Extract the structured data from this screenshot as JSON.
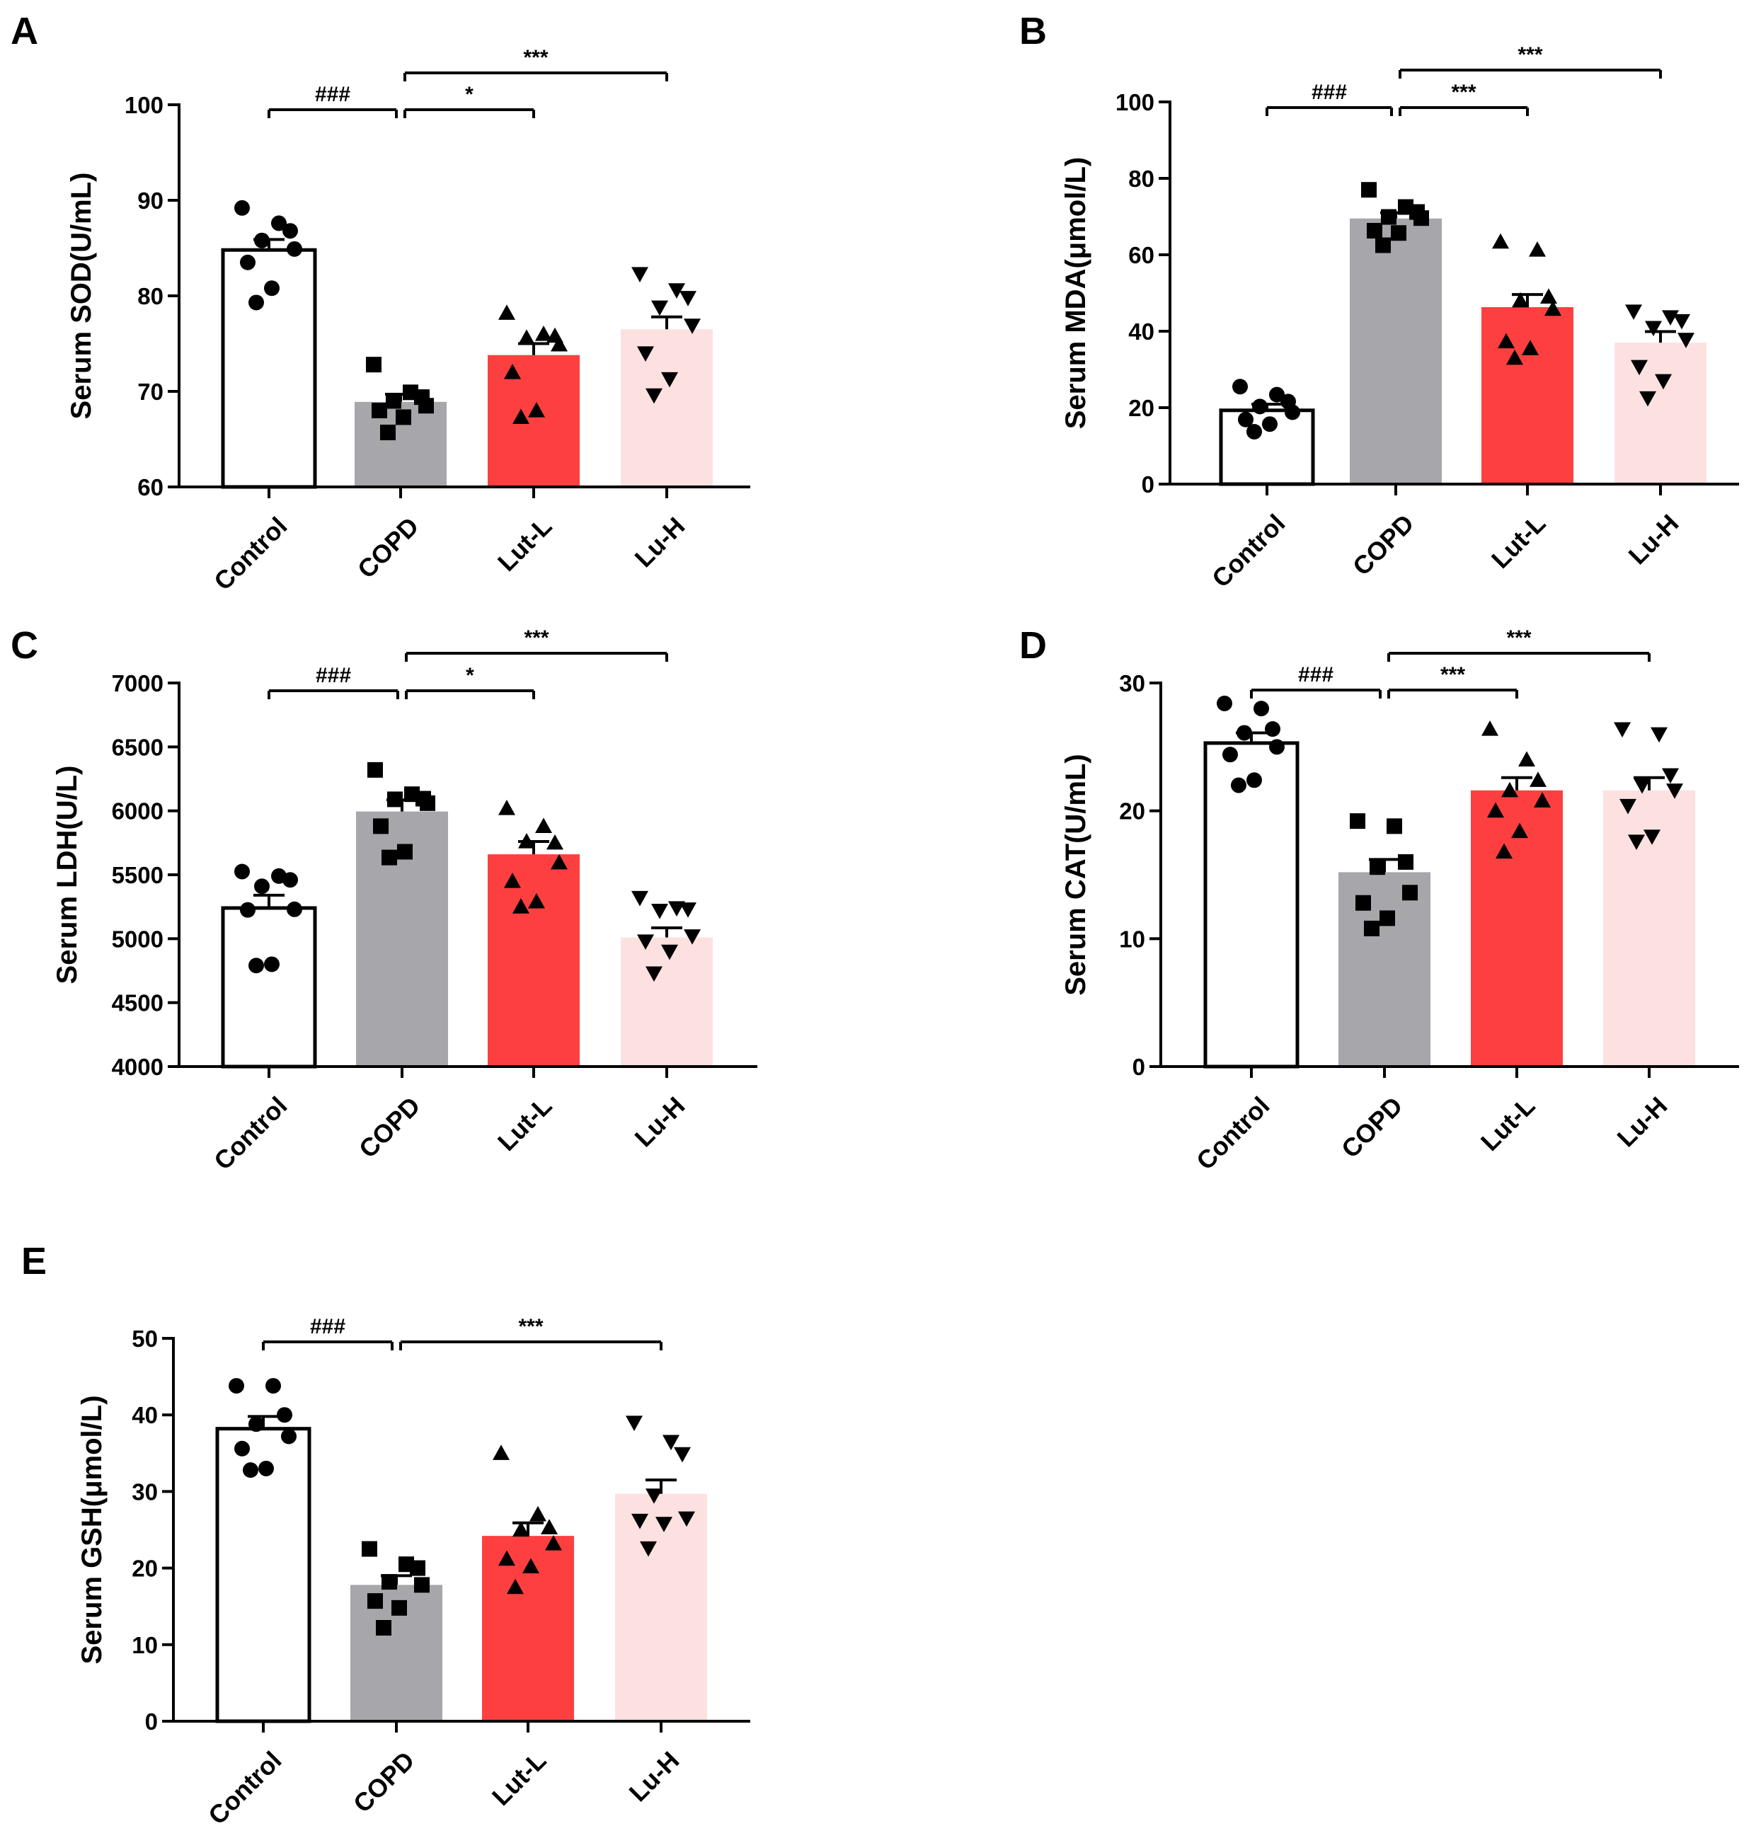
{
  "chart_data": [
    {
      "panel": "A",
      "type": "bar",
      "ylabel": "Serum SOD(U/mL)",
      "ylim": [
        60,
        100
      ],
      "yticks": [
        "60",
        "70",
        "80",
        "90",
        "100"
      ],
      "categories": [
        "Control",
        "COPD",
        "Lut-L",
        "Lu-H"
      ],
      "bar_colors": [
        "#ffffff",
        "#a7a6ab",
        "#fe3f40",
        "#fde1e1"
      ],
      "marker_shapes": [
        "circle",
        "square",
        "triangle-up",
        "triangle-down"
      ],
      "means": [
        84.8,
        68.9,
        73.8,
        76.5
      ],
      "sem": [
        1.1,
        0.8,
        1.2,
        1.3
      ],
      "points": [
        [
          89.2,
          87.6,
          86.8,
          85.8,
          84.9,
          83.5,
          80.8,
          79.3
        ],
        [
          72.8,
          69.9,
          69.4,
          69.0,
          68.5,
          68.0,
          67.3,
          65.7
        ],
        [
          78.2,
          76.0,
          75.8,
          75.6,
          74.9,
          72.0,
          68.0,
          67.3
        ],
        [
          82.3,
          80.6,
          79.8,
          78.8,
          76.9,
          74.0,
          71.3,
          69.6
        ]
      ],
      "significance": [
        {
          "from": 0,
          "to": 1,
          "label": "###",
          "level": 1
        },
        {
          "from": 1,
          "to": 2,
          "label": "*",
          "level": 1
        },
        {
          "from": 1,
          "to": 3,
          "label": "***",
          "level": 2
        }
      ]
    },
    {
      "panel": "B",
      "type": "bar",
      "ylabel": "Serum MDA(μmol/L)",
      "ylim": [
        0,
        100
      ],
      "yticks": [
        "0",
        "20",
        "40",
        "60",
        "80",
        "100"
      ],
      "categories": [
        "Control",
        "COPD",
        "Lut-L",
        "Lu-H"
      ],
      "bar_colors": [
        "#ffffff",
        "#a7a6ab",
        "#fe3f40",
        "#fde1e1"
      ],
      "marker_shapes": [
        "circle",
        "square",
        "triangle-up",
        "triangle-down"
      ],
      "means": [
        19.3,
        69.5,
        46.3,
        37.0
      ],
      "sem": [
        1.6,
        1.5,
        3.3,
        2.9
      ],
      "points": [
        [
          25.5,
          23.4,
          21.6,
          20.3,
          18.8,
          16.9,
          15.7,
          13.7
        ],
        [
          77.0,
          72.5,
          71.2,
          69.9,
          69.6,
          66.3,
          65.7,
          62.5
        ],
        [
          63.4,
          61.3,
          49.0,
          48.0,
          45.8,
          37.3,
          35.5,
          33.0
        ],
        [
          45.2,
          43.7,
          42.7,
          40.9,
          37.8,
          30.7,
          27.0,
          22.5
        ]
      ],
      "significance": [
        {
          "from": 0,
          "to": 1,
          "label": "###",
          "level": 1
        },
        {
          "from": 1,
          "to": 2,
          "label": "***",
          "level": 1
        },
        {
          "from": 1,
          "to": 3,
          "label": "***",
          "level": 2
        }
      ]
    },
    {
      "panel": "C",
      "type": "bar",
      "ylabel": "Serum LDH(U/L)",
      "ylim": [
        4000,
        7000
      ],
      "yticks": [
        "4000",
        "4500",
        "5000",
        "5500",
        "6000",
        "6500",
        "7000"
      ],
      "categories": [
        "Control",
        "COPD",
        "Lut-L",
        "Lu-H"
      ],
      "bar_colors": [
        "#ffffff",
        "#a7a6ab",
        "#fe3f40",
        "#fde1e1"
      ],
      "marker_shapes": [
        "circle",
        "square",
        "triangle-up",
        "triangle-down"
      ],
      "means": [
        5240,
        5995,
        5660,
        5010
      ],
      "sem": [
        100,
        90,
        100,
        75
      ],
      "points": [
        [
          5525,
          5490,
          5460,
          5410,
          5230,
          5225,
          4800,
          4790
        ],
        [
          6320,
          6130,
          6095,
          6090,
          6060,
          5880,
          5680,
          5635
        ],
        [
          6020,
          5880,
          5750,
          5760,
          5595,
          5450,
          5290,
          5250
        ],
        [
          5320,
          5240,
          5230,
          5220,
          5020,
          4980,
          4900,
          4730
        ]
      ],
      "significance": [
        {
          "from": 0,
          "to": 1,
          "label": "###",
          "level": 1
        },
        {
          "from": 1,
          "to": 2,
          "label": "*",
          "level": 1
        },
        {
          "from": 1,
          "to": 3,
          "label": "***",
          "level": 2
        }
      ]
    },
    {
      "panel": "D",
      "type": "bar",
      "ylabel": "Serum CAT(U/mL)",
      "ylim": [
        0,
        30
      ],
      "yticks": [
        "0",
        "10",
        "20",
        "30"
      ],
      "categories": [
        "Control",
        "COPD",
        "Lut-L",
        "Lu-H"
      ],
      "bar_colors": [
        "#ffffff",
        "#a7a6ab",
        "#fe3f40",
        "#fde1e1"
      ],
      "marker_shapes": [
        "circle",
        "square",
        "triangle-up",
        "triangle-down"
      ],
      "means": [
        25.3,
        15.2,
        21.6,
        21.6
      ],
      "sem": [
        0.8,
        1.0,
        1.0,
        1.0
      ],
      "points": [
        [
          28.4,
          28.0,
          26.4,
          26.1,
          25.0,
          24.4,
          22.4,
          22.0
        ],
        [
          19.2,
          18.8,
          16.0,
          15.6,
          13.6,
          12.8,
          11.6,
          10.8
        ],
        [
          26.4,
          24.0,
          22.4,
          21.6,
          20.8,
          20.0,
          18.4,
          16.8
        ],
        [
          26.4,
          26.0,
          22.8,
          22.0,
          21.6,
          20.4,
          18.0,
          17.6
        ]
      ],
      "significance": [
        {
          "from": 0,
          "to": 1,
          "label": "###",
          "level": 1
        },
        {
          "from": 1,
          "to": 2,
          "label": "***",
          "level": 1
        },
        {
          "from": 1,
          "to": 3,
          "label": "***",
          "level": 2
        }
      ]
    },
    {
      "panel": "E",
      "type": "bar",
      "ylabel": "Serum GSH(μmol/L)",
      "ylim": [
        0,
        50
      ],
      "yticks": [
        "0",
        "10",
        "20",
        "30",
        "40",
        "50"
      ],
      "categories": [
        "Control",
        "COPD",
        "Lut-L",
        "Lu-H"
      ],
      "bar_colors": [
        "#ffffff",
        "#a7a6ab",
        "#fe3f40",
        "#fde1e1"
      ],
      "marker_shapes": [
        "circle",
        "square",
        "triangle-up",
        "triangle-down"
      ],
      "means": [
        38.2,
        17.8,
        24.2,
        29.7
      ],
      "sem": [
        1.6,
        1.2,
        1.7,
        1.8
      ],
      "points": [
        [
          43.8,
          43.8,
          40.0,
          38.8,
          37.2,
          35.6,
          33.0,
          32.8
        ],
        [
          22.5,
          20.5,
          20.0,
          18.2,
          17.8,
          15.7,
          14.8,
          12.2
        ],
        [
          35.0,
          27.0,
          25.3,
          25.0,
          23.2,
          21.2,
          20.2,
          17.5
        ],
        [
          39.0,
          36.5,
          34.9,
          29.5,
          26.5,
          26.2,
          25.8,
          22.6
        ]
      ],
      "significance": [
        {
          "from": 0,
          "to": 1,
          "label": "###",
          "level": 1
        },
        {
          "from": 1,
          "to": 3,
          "label": "***",
          "level": 1
        }
      ]
    }
  ]
}
